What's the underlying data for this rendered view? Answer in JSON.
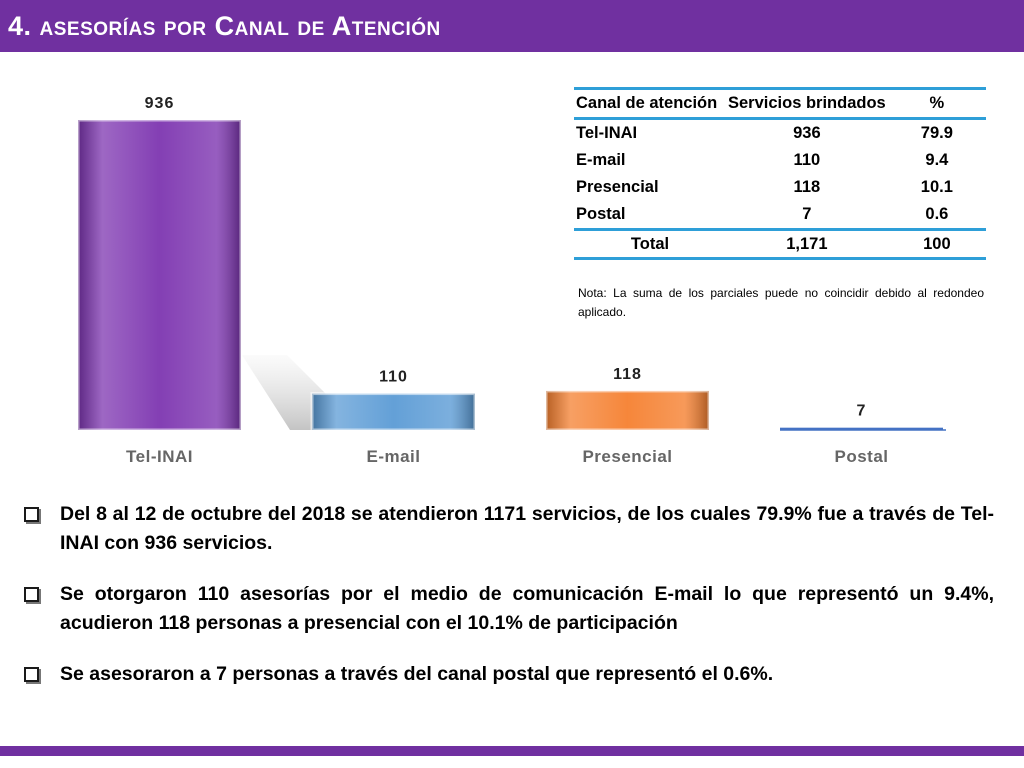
{
  "slide": {
    "title": "4. asesorías por Canal de Atención",
    "accent_color": "#7030a0"
  },
  "chart_data": {
    "type": "bar",
    "categories": [
      "Tel-INAI",
      "E-mail",
      "Presencial",
      "Postal"
    ],
    "values": [
      936,
      110,
      118,
      7
    ],
    "value_labels": [
      "936",
      "110",
      "118",
      "7"
    ],
    "colors": [
      "#7d35b0",
      "#5b9bd5",
      "#f58030",
      "#4472c4"
    ],
    "title": "",
    "xlabel": "",
    "ylabel": "",
    "ylim": [
      0,
      936
    ],
    "grid": false,
    "legend": "none"
  },
  "table": {
    "headers": [
      "Canal de atención",
      "Servicios brindados",
      "%"
    ],
    "rows": [
      [
        "Tel-INAI",
        "936",
        "79.9"
      ],
      [
        "E-mail",
        "110",
        "9.4"
      ],
      [
        "Presencial",
        "118",
        "10.1"
      ],
      [
        "Postal",
        "7",
        "0.6"
      ]
    ],
    "total": [
      "Total",
      "1,171",
      "100"
    ],
    "border_color": "#2e9fd8"
  },
  "note": "Nota: La suma de los parciales puede no coincidir debido al redondeo aplicado.",
  "bullets": [
    "Del 8 al 12 de octubre del 2018 se atendieron 1171 servicios, de los cuales 79.9% fue a través de Tel-INAI con 936 servicios.",
    "Se otorgaron 110 asesorías por el medio de comunicación E-mail lo que representó un 9.4%, acudieron 118 personas a presencial con el 10.1% de participación",
    "Se asesoraron a 7 personas a través del canal postal que representó el 0.6%."
  ]
}
